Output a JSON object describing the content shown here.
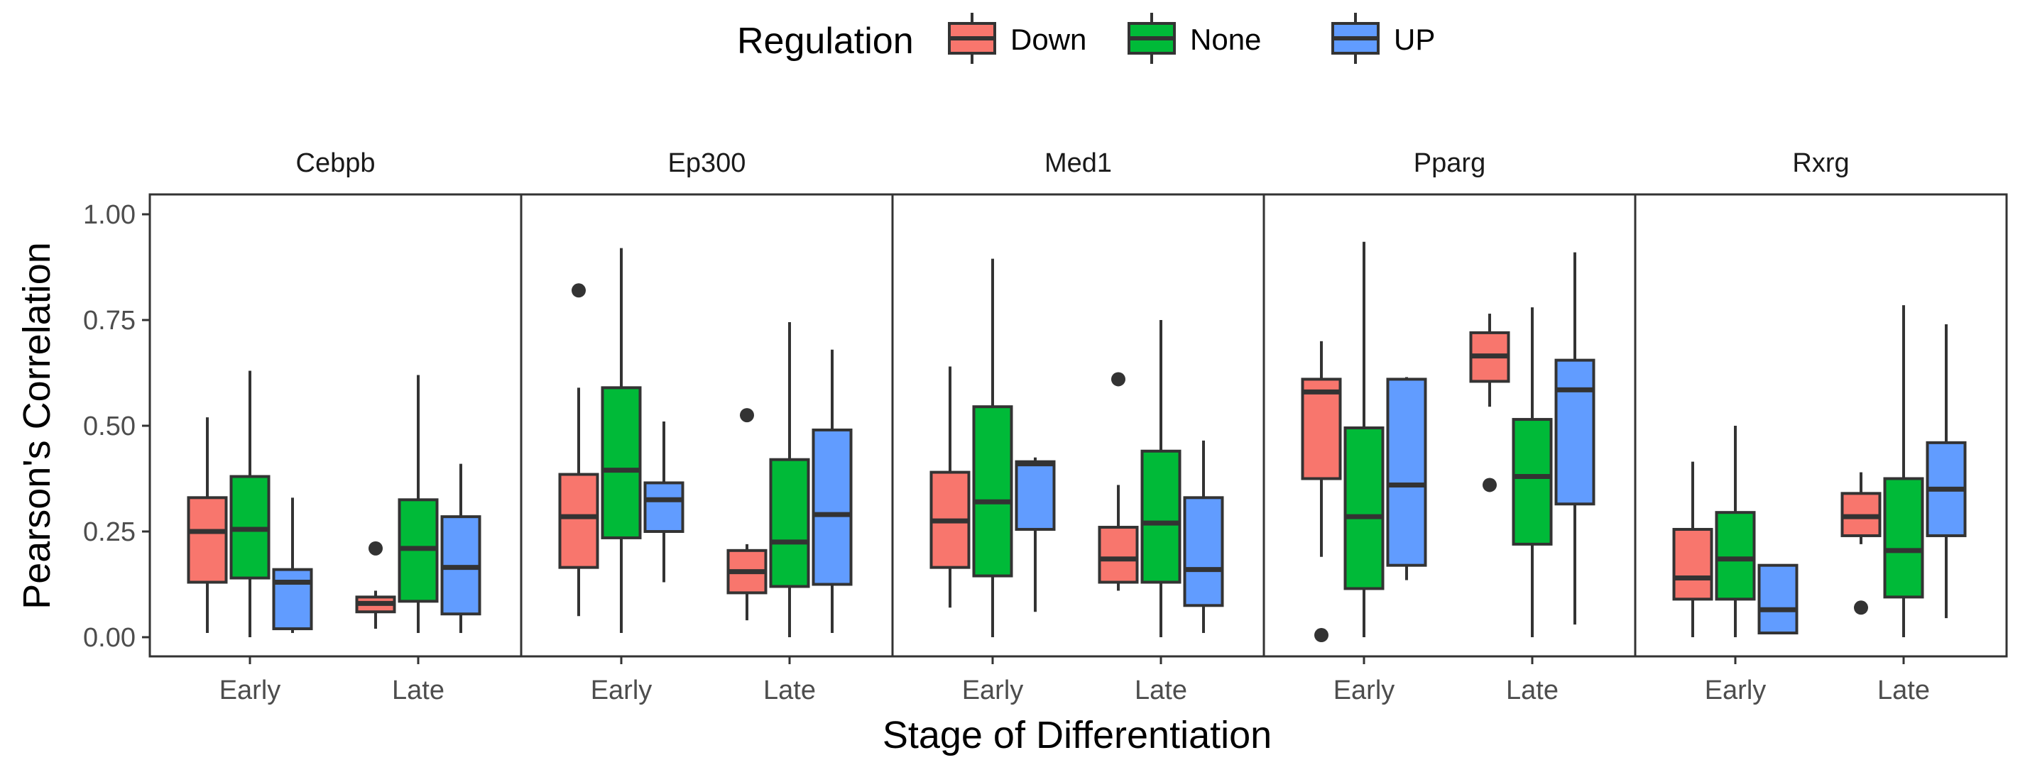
{
  "colors": {
    "Down": "#F8766D",
    "None": "#00BA38",
    "UP": "#619CFF",
    "outline": "#333333"
  },
  "legend": {
    "title": "Regulation",
    "items": [
      "Down",
      "None",
      "UP"
    ]
  },
  "chart_data": {
    "type": "boxplot",
    "xlabel": "Stage of Differentiation",
    "ylabel": "Pearson's Correlation",
    "ylim": [
      0,
      1
    ],
    "yticks": [
      "0.00",
      "0.25",
      "0.50",
      "0.75",
      "1.00"
    ],
    "categories": [
      "Early",
      "Late"
    ],
    "legend_position": "top",
    "grid": false,
    "panels": [
      {
        "name": "Cebpb",
        "groups": {
          "Early": {
            "Down": {
              "min": 0.01,
              "q1": 0.13,
              "median": 0.25,
              "q3": 0.33,
              "max": 0.52,
              "outliers": []
            },
            "None": {
              "min": 0.0,
              "q1": 0.14,
              "median": 0.255,
              "q3": 0.38,
              "max": 0.63,
              "outliers": []
            },
            "UP": {
              "min": 0.01,
              "q1": 0.02,
              "median": 0.13,
              "q3": 0.16,
              "max": 0.33,
              "outliers": []
            }
          },
          "Late": {
            "Down": {
              "min": 0.02,
              "q1": 0.06,
              "median": 0.08,
              "q3": 0.095,
              "max": 0.11,
              "outliers": [
                0.21
              ]
            },
            "None": {
              "min": 0.01,
              "q1": 0.085,
              "median": 0.21,
              "q3": 0.325,
              "max": 0.62,
              "outliers": []
            },
            "UP": {
              "min": 0.01,
              "q1": 0.055,
              "median": 0.165,
              "q3": 0.285,
              "max": 0.41,
              "outliers": []
            }
          }
        }
      },
      {
        "name": "Ep300",
        "groups": {
          "Early": {
            "Down": {
              "min": 0.05,
              "q1": 0.165,
              "median": 0.285,
              "q3": 0.385,
              "max": 0.59,
              "outliers": [
                0.82
              ]
            },
            "None": {
              "min": 0.01,
              "q1": 0.235,
              "median": 0.395,
              "q3": 0.59,
              "max": 0.92,
              "outliers": []
            },
            "UP": {
              "min": 0.13,
              "q1": 0.25,
              "median": 0.325,
              "q3": 0.365,
              "max": 0.51,
              "outliers": []
            }
          },
          "Late": {
            "Down": {
              "min": 0.04,
              "q1": 0.105,
              "median": 0.155,
              "q3": 0.205,
              "max": 0.22,
              "outliers": [
                0.525
              ]
            },
            "None": {
              "min": 0.0,
              "q1": 0.12,
              "median": 0.225,
              "q3": 0.42,
              "max": 0.745,
              "outliers": []
            },
            "UP": {
              "min": 0.01,
              "q1": 0.125,
              "median": 0.29,
              "q3": 0.49,
              "max": 0.68,
              "outliers": []
            }
          }
        }
      },
      {
        "name": "Med1",
        "groups": {
          "Early": {
            "Down": {
              "min": 0.07,
              "q1": 0.165,
              "median": 0.275,
              "q3": 0.39,
              "max": 0.64,
              "outliers": []
            },
            "None": {
              "min": 0.0,
              "q1": 0.145,
              "median": 0.32,
              "q3": 0.545,
              "max": 0.895,
              "outliers": []
            },
            "UP": {
              "min": 0.06,
              "q1": 0.255,
              "median": 0.41,
              "q3": 0.415,
              "max": 0.425,
              "outliers": []
            }
          },
          "Late": {
            "Down": {
              "min": 0.11,
              "q1": 0.13,
              "median": 0.185,
              "q3": 0.26,
              "max": 0.36,
              "outliers": [
                0.61
              ]
            },
            "None": {
              "min": 0.0,
              "q1": 0.13,
              "median": 0.27,
              "q3": 0.44,
              "max": 0.75,
              "outliers": []
            },
            "UP": {
              "min": 0.01,
              "q1": 0.075,
              "median": 0.16,
              "q3": 0.33,
              "max": 0.465,
              "outliers": []
            }
          }
        }
      },
      {
        "name": "Pparg",
        "groups": {
          "Early": {
            "Down": {
              "min": 0.19,
              "q1": 0.375,
              "median": 0.58,
              "q3": 0.61,
              "max": 0.7,
              "outliers": [
                0.005
              ]
            },
            "None": {
              "min": 0.0,
              "q1": 0.115,
              "median": 0.285,
              "q3": 0.495,
              "max": 0.935,
              "outliers": []
            },
            "UP": {
              "min": 0.135,
              "q1": 0.17,
              "median": 0.36,
              "q3": 0.61,
              "max": 0.615,
              "outliers": []
            }
          },
          "Late": {
            "Down": {
              "min": 0.545,
              "q1": 0.605,
              "median": 0.665,
              "q3": 0.72,
              "max": 0.765,
              "outliers": [
                0.36
              ]
            },
            "None": {
              "min": 0.0,
              "q1": 0.22,
              "median": 0.38,
              "q3": 0.515,
              "max": 0.78,
              "outliers": []
            },
            "UP": {
              "min": 0.03,
              "q1": 0.315,
              "median": 0.585,
              "q3": 0.655,
              "max": 0.91,
              "outliers": []
            }
          }
        }
      },
      {
        "name": "Rxrg",
        "groups": {
          "Early": {
            "Down": {
              "min": 0.0,
              "q1": 0.09,
              "median": 0.14,
              "q3": 0.255,
              "max": 0.415,
              "outliers": []
            },
            "None": {
              "min": 0.0,
              "q1": 0.09,
              "median": 0.185,
              "q3": 0.295,
              "max": 0.5,
              "outliers": []
            },
            "UP": {
              "min": 0.01,
              "q1": 0.01,
              "median": 0.065,
              "q3": 0.17,
              "max": 0.17,
              "outliers": []
            }
          },
          "Late": {
            "Down": {
              "min": 0.22,
              "q1": 0.24,
              "median": 0.285,
              "q3": 0.34,
              "max": 0.39,
              "outliers": [
                0.07
              ]
            },
            "None": {
              "min": 0.0,
              "q1": 0.095,
              "median": 0.205,
              "q3": 0.375,
              "max": 0.785,
              "outliers": []
            },
            "UP": {
              "min": 0.045,
              "q1": 0.24,
              "median": 0.35,
              "q3": 0.46,
              "max": 0.74,
              "outliers": []
            }
          }
        }
      }
    ]
  }
}
